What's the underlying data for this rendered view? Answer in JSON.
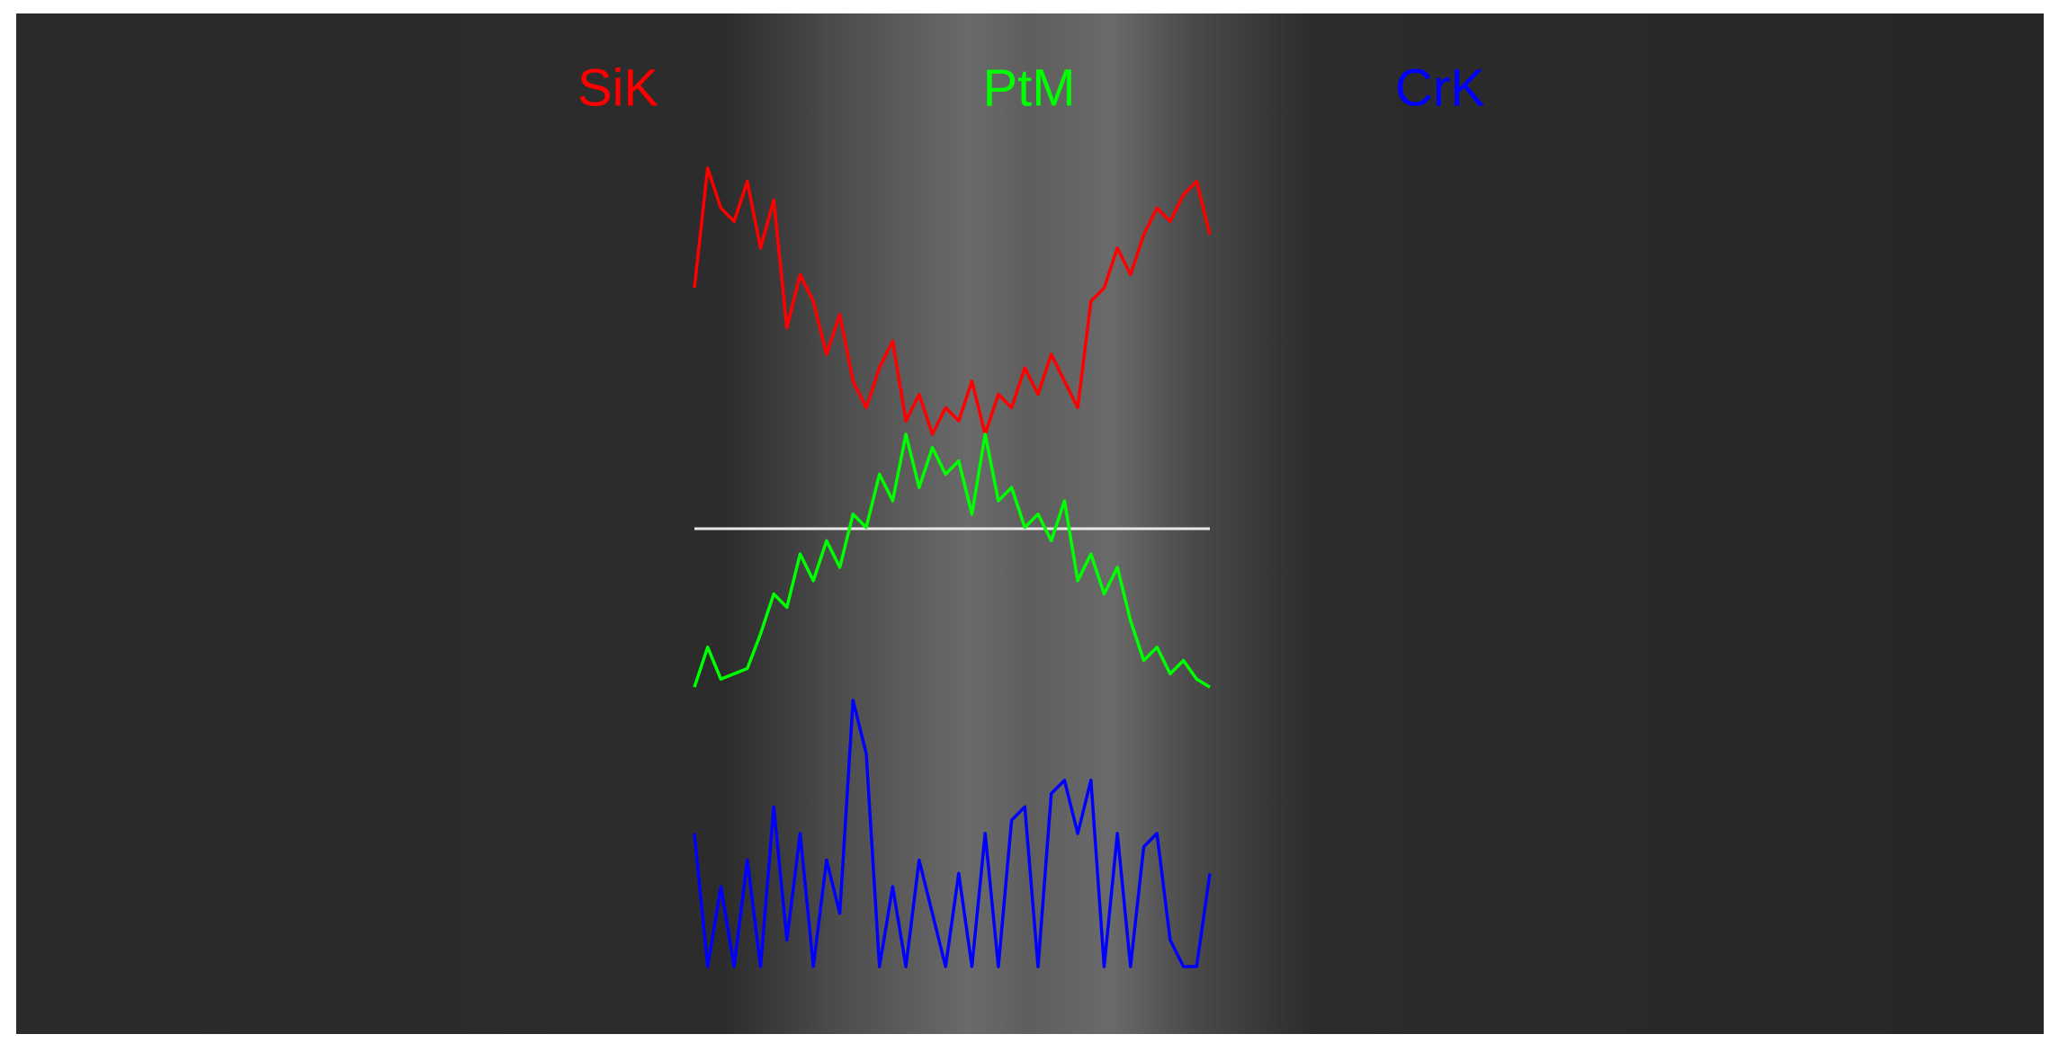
{
  "chart_data": {
    "type": "line",
    "ylim": [
      0,
      100
    ],
    "series": [
      {
        "name": "SiK",
        "color": "#ff0000",
        "values": [
          55,
          100,
          85,
          80,
          95,
          70,
          88,
          40,
          60,
          50,
          30,
          45,
          20,
          10,
          25,
          35,
          5,
          15,
          0,
          10,
          5,
          20,
          0,
          15,
          10,
          25,
          15,
          30,
          20,
          10,
          50,
          55,
          70,
          60,
          75,
          85,
          80,
          90,
          95,
          75
        ]
      },
      {
        "name": "PtM",
        "color": "#00ff00",
        "values": [
          5,
          20,
          8,
          10,
          12,
          25,
          40,
          35,
          55,
          45,
          60,
          50,
          70,
          65,
          85,
          75,
          100,
          80,
          95,
          85,
          90,
          70,
          100,
          75,
          80,
          65,
          70,
          60,
          75,
          45,
          55,
          40,
          50,
          30,
          15,
          20,
          10,
          15,
          8,
          5
        ]
      },
      {
        "name": "CrK",
        "color": "#0000ff",
        "values": [
          50,
          0,
          30,
          0,
          40,
          0,
          60,
          10,
          50,
          0,
          40,
          20,
          100,
          80,
          0,
          30,
          0,
          40,
          20,
          0,
          35,
          0,
          50,
          0,
          55,
          60,
          0,
          65,
          70,
          50,
          70,
          0,
          50,
          0,
          45,
          50,
          10,
          0,
          0,
          35
        ]
      }
    ]
  }
}
